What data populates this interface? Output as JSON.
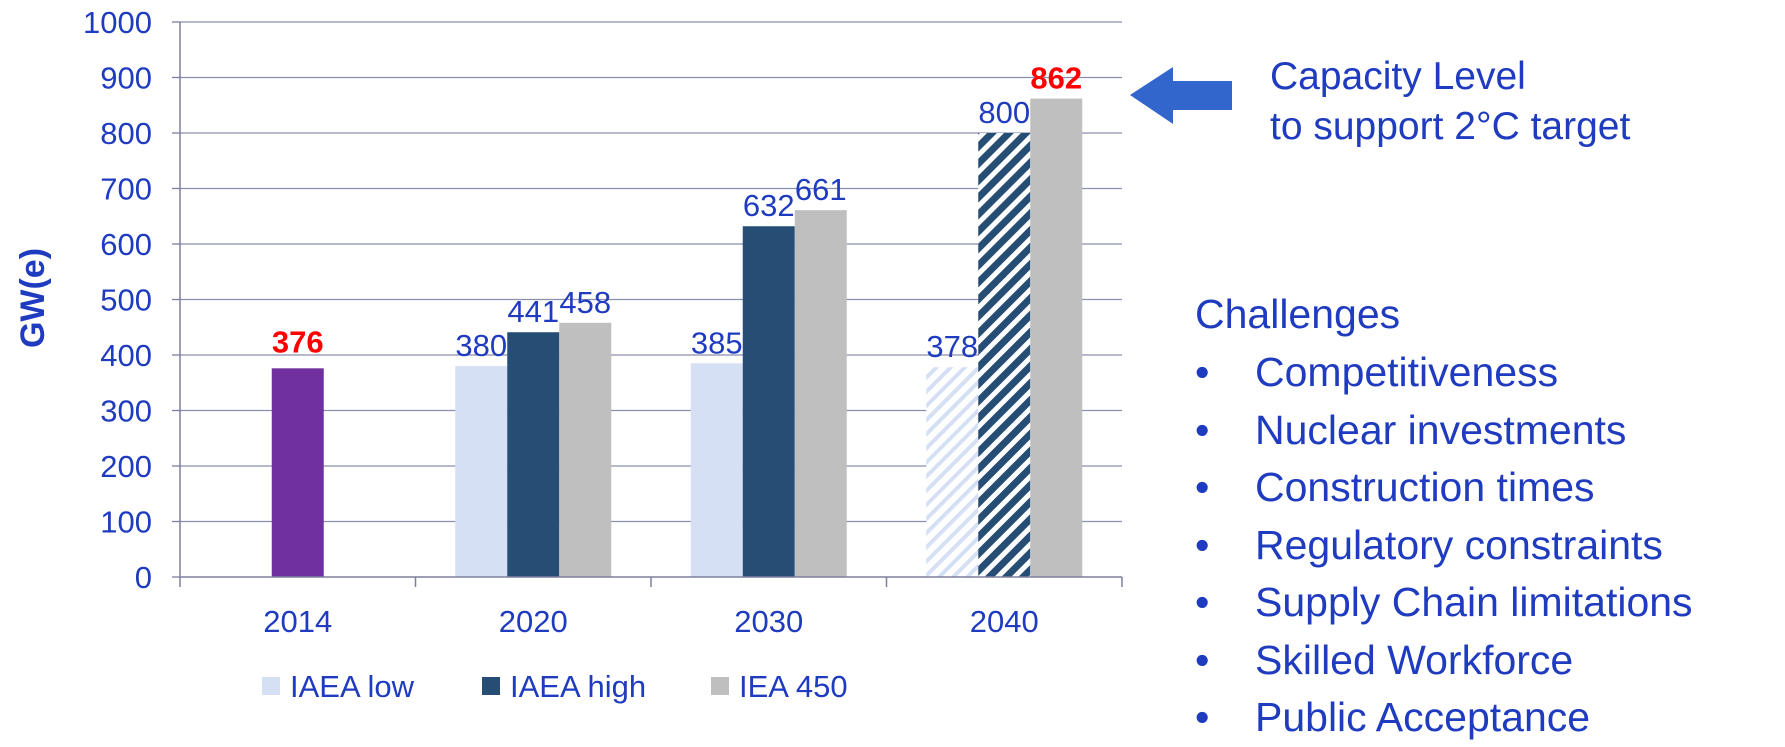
{
  "chart_data": {
    "type": "bar",
    "ylabel": "GW(e)",
    "xlabel": "",
    "ylim": [
      0,
      1000
    ],
    "yticks": [
      0,
      100,
      200,
      300,
      400,
      500,
      600,
      700,
      800,
      900,
      1000
    ],
    "grid": true,
    "legend_position": "bottom",
    "categories": [
      "2014",
      "2020",
      "2030",
      "2040"
    ],
    "historical": {
      "category": "2014",
      "value": 376,
      "label": "376",
      "color": "#7030a0",
      "label_color": "#ff0000"
    },
    "series": [
      {
        "name": "IAEA low",
        "color": "#d6e0f5",
        "values": [
          null,
          380,
          385,
          378
        ],
        "labels": [
          "",
          "380",
          "385",
          "378"
        ],
        "hatched": [
          false,
          false,
          false,
          true
        ]
      },
      {
        "name": "IAEA high",
        "color": "#264d73",
        "values": [
          null,
          441,
          632,
          800
        ],
        "labels": [
          "",
          "441",
          "632",
          "800"
        ],
        "hatched": [
          false,
          false,
          false,
          true
        ]
      },
      {
        "name": "IEA 450",
        "color": "#bfbfbf",
        "values": [
          null,
          458,
          661,
          862
        ],
        "labels": [
          "",
          "458",
          "661",
          "862"
        ],
        "hatched": [
          false,
          false,
          false,
          false
        ]
      }
    ],
    "label_color": "#1f3bbf",
    "highlight_label_color": "#ff0000",
    "highlight_labels": [
      "862"
    ],
    "annotation_arrow_color": "#3366cc"
  },
  "annotation": {
    "line1": "Capacity Level",
    "line2": "to support 2°C target"
  },
  "challenges": {
    "title": "Challenges",
    "items": [
      "Competitiveness",
      "Nuclear investments",
      "Construction times",
      "Regulatory constraints",
      "Supply Chain limitations",
      "Skilled Workforce",
      "Public Acceptance"
    ]
  },
  "colors": {
    "text": "#1f3bbf",
    "axis": "#7f7f9f"
  }
}
